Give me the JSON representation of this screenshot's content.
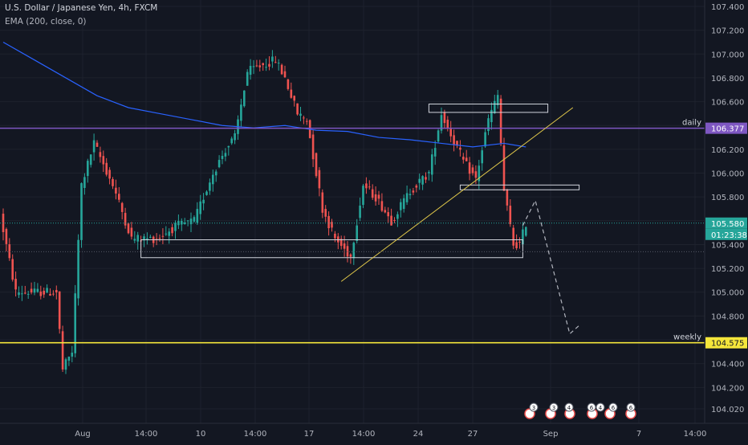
{
  "header": {
    "title": "U.S. Dollar / Japanese Yen, 4h, FXCM",
    "indicator": "EMA (200, close, 0)"
  },
  "colors": {
    "background": "#131722",
    "grid": "#1e222d",
    "text": "#b2b5be",
    "up": "#26a69a",
    "down": "#ef5350",
    "ema": "#2962ff",
    "daily_line": "#7e57c2",
    "weekly_line": "#f5e63b",
    "trendline": "#e0c84a",
    "price_tag": "#26a69a"
  },
  "chart_data": {
    "type": "candlestick",
    "symbol": "U.S. Dollar / Japanese Yen, 4h, FXCM",
    "ylim": [
      103.9,
      107.5
    ],
    "y_ticks": [
      "107.400",
      "107.200",
      "107.000",
      "106.800",
      "106.600",
      "106.400",
      "106.200",
      "106.000",
      "105.800",
      "105.600",
      "105.400",
      "105.200",
      "105.000",
      "104.800",
      "104.600",
      "104.400",
      "104.200",
      "104.020"
    ],
    "x_ticks": [
      "Aug",
      "14:00",
      "10",
      "14:00",
      "17",
      "14:00",
      "24",
      "27",
      "Sep",
      "7",
      "14:00"
    ],
    "candle_count": 168,
    "ema_label": "EMA (200, close, 0)",
    "levels": [
      {
        "label": "daily",
        "price": 106.377,
        "tag": "106.377"
      },
      {
        "label": "weekly",
        "price": 104.575,
        "tag": "104.575"
      }
    ],
    "last_price": {
      "tag": "105.580",
      "countdown": "01:23:38"
    },
    "zones": [
      {
        "from_index": 44,
        "to_index": 166,
        "low": 105.29,
        "high": 105.44
      },
      {
        "from_index": 136,
        "to_index": 174,
        "low": 106.51,
        "high": 106.58
      },
      {
        "from_index": 146,
        "to_index": 184,
        "low": 105.86,
        "high": 105.9
      }
    ],
    "trendline": {
      "from": [
        108,
        105.09
      ],
      "to": [
        182,
        106.55
      ]
    },
    "projection": [
      [
        166,
        105.56
      ],
      [
        170,
        105.77
      ],
      [
        181,
        104.65
      ],
      [
        184,
        104.72
      ]
    ],
    "events": [
      "3",
      "3",
      "4",
      "6",
      "4",
      "6",
      "6"
    ]
  }
}
